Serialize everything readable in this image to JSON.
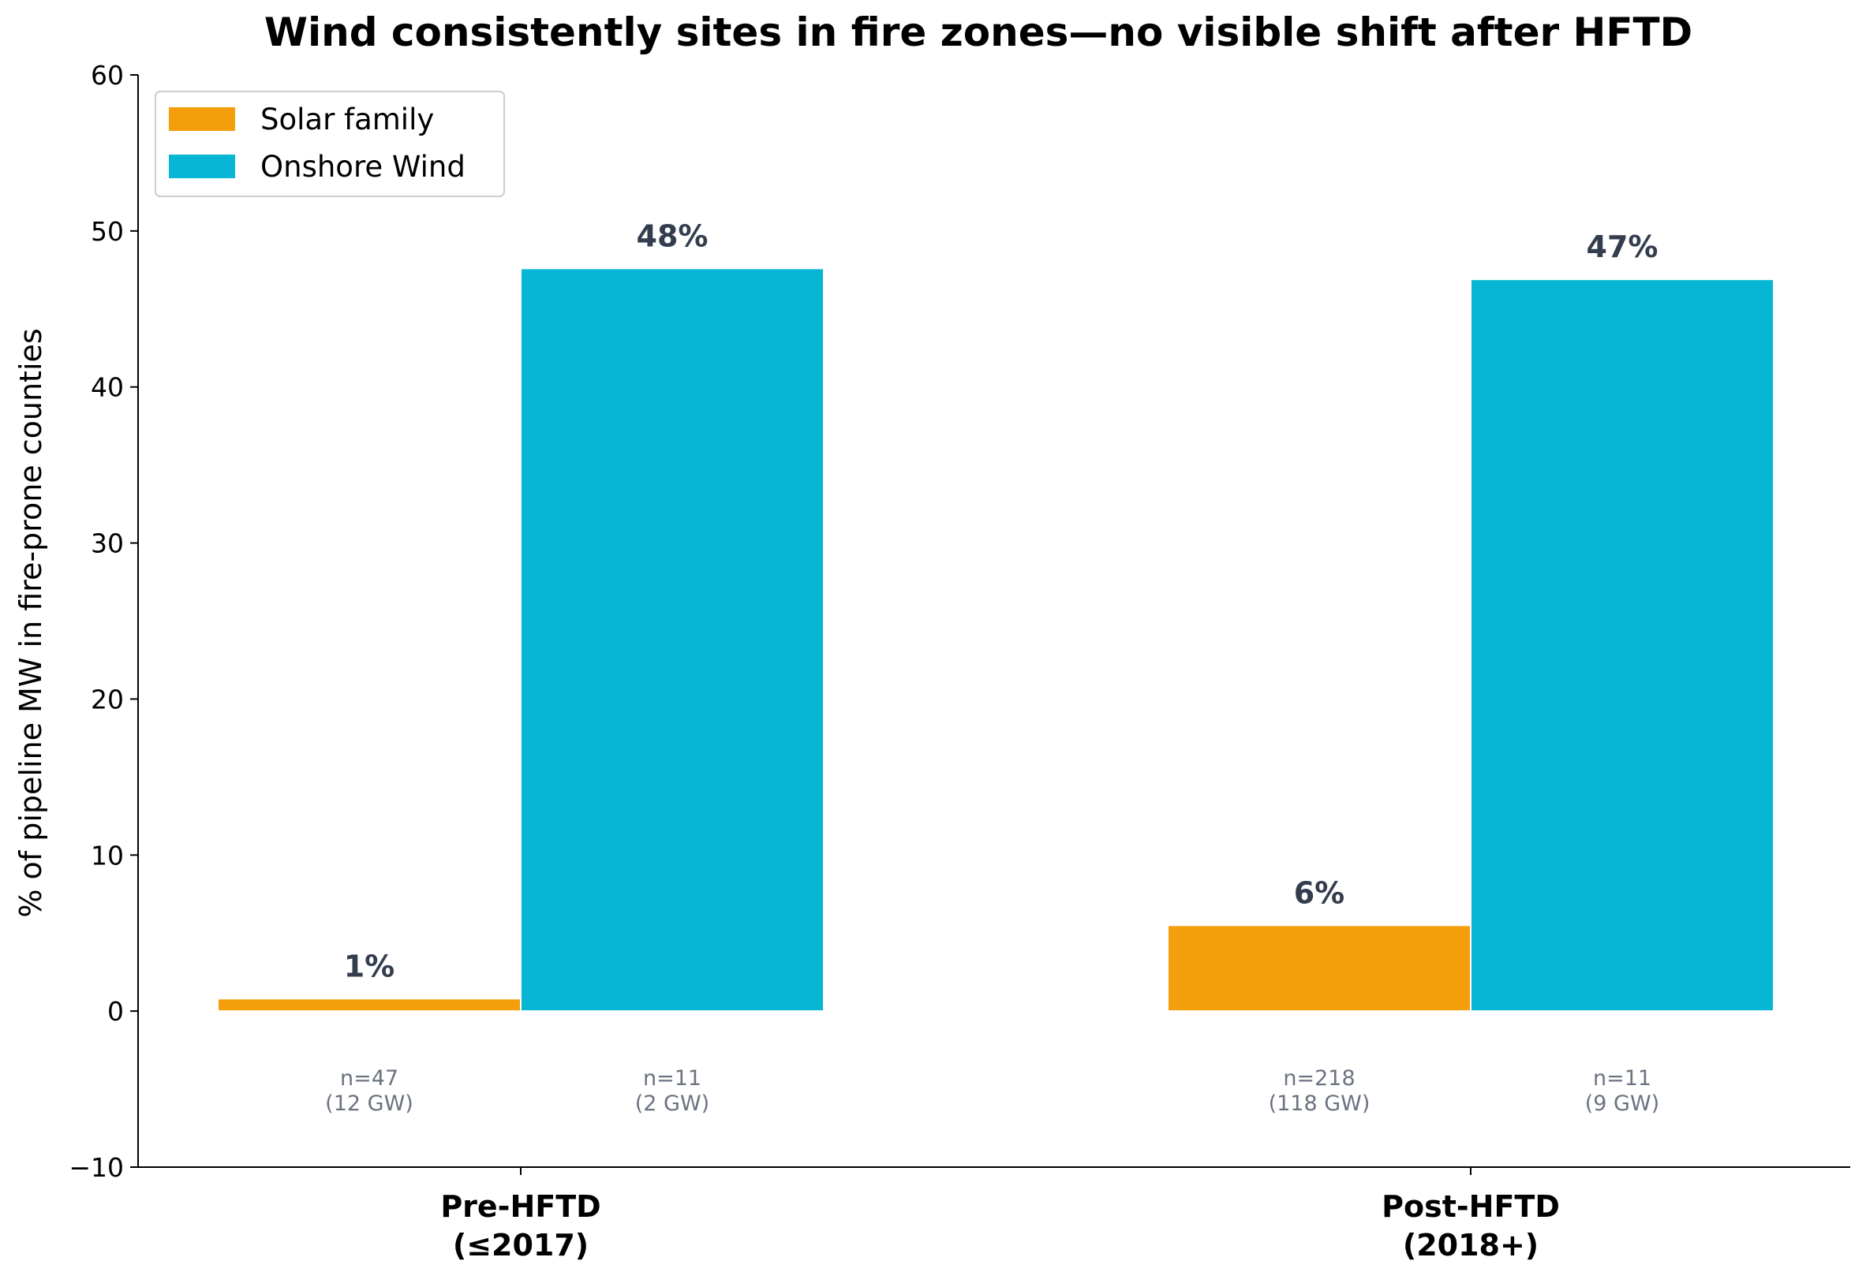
{
  "chart_data": {
    "type": "bar",
    "title": "Wind consistently sites in fire zones—no visible shift after HFTD",
    "ylabel": "% of pipeline MW in fire-prone counties",
    "xlabel": "",
    "ylim": [
      -10,
      60
    ],
    "yticks": [
      -10,
      0,
      10,
      20,
      30,
      40,
      50,
      60
    ],
    "ytick_labels": [
      "−10",
      "0",
      "10",
      "20",
      "30",
      "40",
      "50",
      "60"
    ],
    "grid": false,
    "legend_position": "top-left",
    "categories": [
      {
        "line1": "Pre-HFTD",
        "line2": "(≤2017)"
      },
      {
        "line1": "Post-HFTD",
        "line2": "(2018+)"
      }
    ],
    "series": [
      {
        "name": "Solar family",
        "color": "#f59e0b",
        "values": [
          0.8,
          5.5
        ],
        "value_labels": [
          "1%",
          "6%"
        ],
        "n_labels": [
          {
            "n": "n=47",
            "gw": "(12 GW)"
          },
          {
            "n": "n=218",
            "gw": "(118 GW)"
          }
        ]
      },
      {
        "name": "Onshore Wind",
        "color": "#06b6d4",
        "values": [
          47.6,
          46.9
        ],
        "value_labels": [
          "48%",
          "47%"
        ],
        "n_labels": [
          {
            "n": "n=11",
            "gw": "(2 GW)"
          },
          {
            "n": "n=11",
            "gw": "(9 GW)"
          }
        ]
      }
    ]
  }
}
